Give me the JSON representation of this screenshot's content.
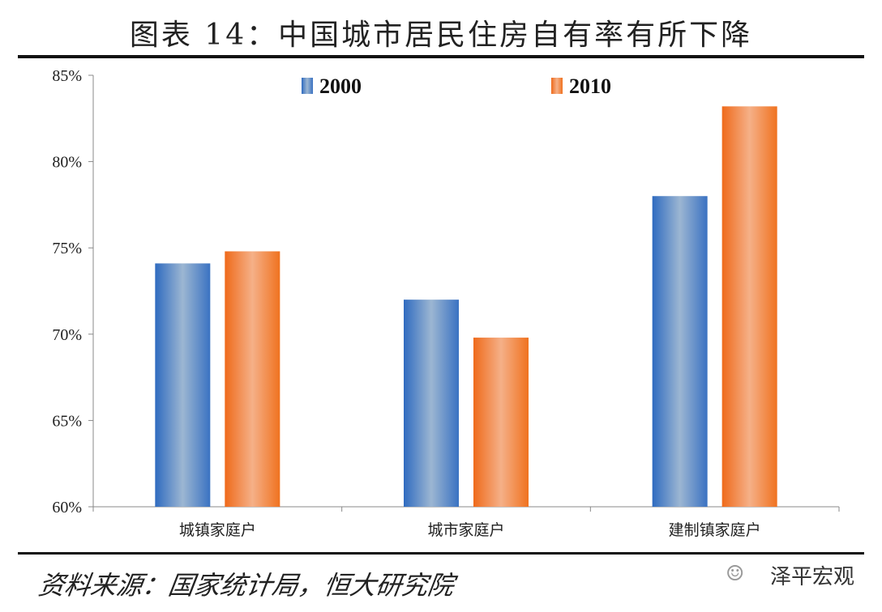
{
  "title": "图表 14：中国城市居民住房自有率有所下降",
  "source": "资料来源：国家统计局，恒大研究院",
  "watermark": "泽平宏观",
  "chart_data": {
    "type": "bar",
    "categories": [
      "城镇家庭户",
      "城市家庭户",
      "建制镇家庭户"
    ],
    "series": [
      {
        "name": "2000",
        "values": [
          74.1,
          72.0,
          78.0
        ],
        "color": "#4a7fc4"
      },
      {
        "name": "2010",
        "values": [
          74.8,
          69.8,
          83.2
        ],
        "color": "#f07a2a"
      }
    ],
    "ylim": [
      60,
      85
    ],
    "yticks": [
      60,
      65,
      70,
      75,
      80,
      85
    ],
    "ytick_labels": [
      "60%",
      "65%",
      "70%",
      "75%",
      "80%",
      "85%"
    ],
    "legend": "top",
    "grid": false
  }
}
